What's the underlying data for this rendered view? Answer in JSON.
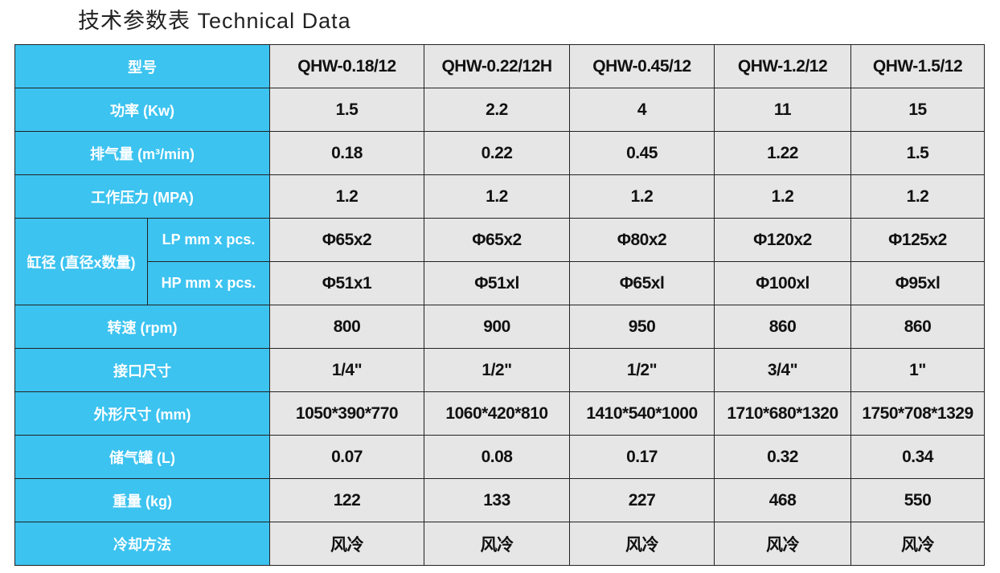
{
  "title": "技术参数表 Technical Data",
  "table": {
    "header": {
      "label": "型号",
      "models": [
        "QHW-0.18/12",
        "QHW-0.22/12H",
        "QHW-0.45/12",
        "QHW-1.2/12",
        "QHW-1.5/12"
      ]
    },
    "rows": [
      {
        "label": "功率 (Kw)",
        "values": [
          "1.5",
          "2.2",
          "4",
          "11",
          "15"
        ]
      },
      {
        "label": "排气量 (m³/min)",
        "values": [
          "0.18",
          "0.22",
          "0.45",
          "1.22",
          "1.5"
        ]
      },
      {
        "label": "工作压力 (MPA)",
        "values": [
          "1.2",
          "1.2",
          "1.2",
          "1.2",
          "1.2"
        ]
      },
      {
        "group": "缸径 (直径x数量)",
        "subrows": [
          {
            "label": "LP mm x pcs.",
            "values": [
              "Φ65x2",
              "Φ65x2",
              "Φ80x2",
              "Φ120x2",
              "Φ125x2"
            ]
          },
          {
            "label": "HP mm x pcs.",
            "values": [
              "Φ51x1",
              "Φ51xl",
              "Φ65xl",
              "Φ100xl",
              "Φ95xl"
            ]
          }
        ]
      },
      {
        "label": "转速 (rpm)",
        "values": [
          "800",
          "900",
          "950",
          "860",
          "860"
        ]
      },
      {
        "label": "接口尺寸",
        "values": [
          "1/4\"",
          "1/2\"",
          "1/2\"",
          "3/4\"",
          "1\""
        ]
      },
      {
        "label": "外形尺寸 (mm)",
        "values": [
          "1050*390*770",
          "1060*420*810",
          "1410*540*1000",
          "1710*680*1320",
          "1750*708*1329"
        ]
      },
      {
        "label": "储气罐 (L)",
        "values": [
          "0.07",
          "0.08",
          "0.17",
          "0.32",
          "0.34"
        ]
      },
      {
        "label": "重量 (kg)",
        "values": [
          "122",
          "133",
          "227",
          "468",
          "550"
        ]
      },
      {
        "label": "冷却方法",
        "values": [
          "风冷",
          "风冷",
          "风冷",
          "风冷",
          "风冷"
        ]
      }
    ]
  }
}
